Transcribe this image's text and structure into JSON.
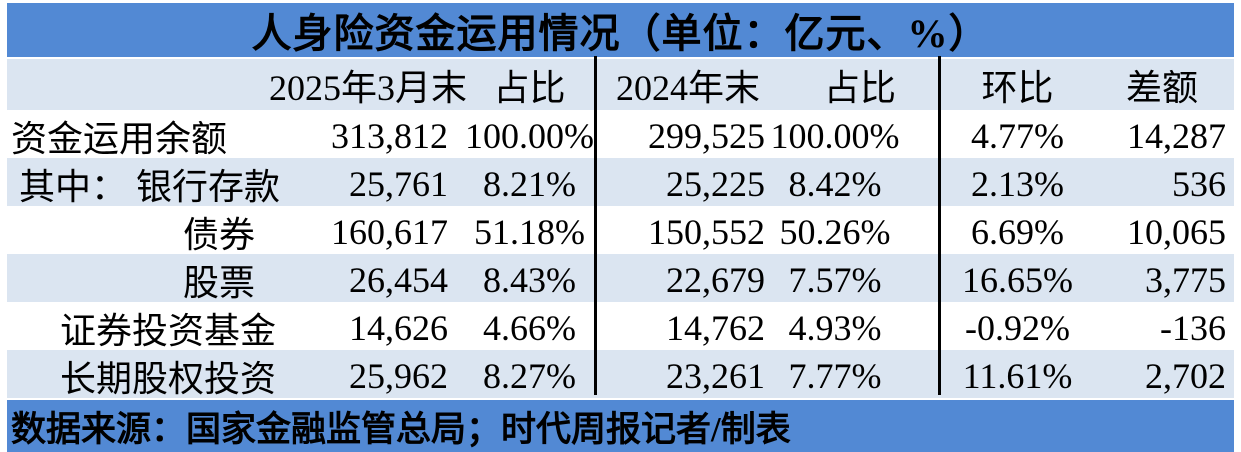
{
  "title": "人身险资金运用情况（单位：亿元、%）",
  "footer": {
    "source": "数据来源：国家金融监管总局；时代周报记者/制表"
  },
  "colors": {
    "title_bar": "#5289D4",
    "stripe": "#DBE5F1",
    "divider": "#000000",
    "text": "#000000"
  },
  "chart_data": {
    "type": "table",
    "title": "人身险资金运用情况",
    "unit": "亿元、%",
    "columns": [
      "",
      "2025年3月末",
      "占比",
      "2024年末",
      "占比",
      "环比",
      "差额"
    ],
    "rows": [
      {
        "label": "资金运用余额",
        "indent": "none",
        "values": [
          "313,812",
          "100.00%",
          "299,525",
          "100.00%",
          "4.77%",
          "14,287"
        ]
      },
      {
        "label": "其中： 银行存款",
        "indent": "flush",
        "values": [
          "25,761",
          "8.21%",
          "25,225",
          "8.42%",
          "2.13%",
          "536"
        ]
      },
      {
        "label": "债券",
        "indent": "deep",
        "values": [
          "160,617",
          "51.18%",
          "150,552",
          "50.26%",
          "6.69%",
          "10,065"
        ]
      },
      {
        "label": "股票",
        "indent": "deep",
        "values": [
          "26,454",
          "8.43%",
          "22,679",
          "7.57%",
          "16.65%",
          "3,775"
        ]
      },
      {
        "label": "证券投资基金",
        "indent": "mid",
        "values": [
          "14,626",
          "4.66%",
          "14,762",
          "4.93%",
          "-0.92%",
          "-136"
        ]
      },
      {
        "label": "长期股权投资",
        "indent": "mid",
        "values": [
          "25,962",
          "8.27%",
          "23,261",
          "7.77%",
          "11.61%",
          "2,702"
        ]
      }
    ],
    "layout": {
      "stripe_rows": [
        1,
        3,
        5
      ],
      "dividers_after_columns": [
        2,
        4
      ]
    }
  }
}
